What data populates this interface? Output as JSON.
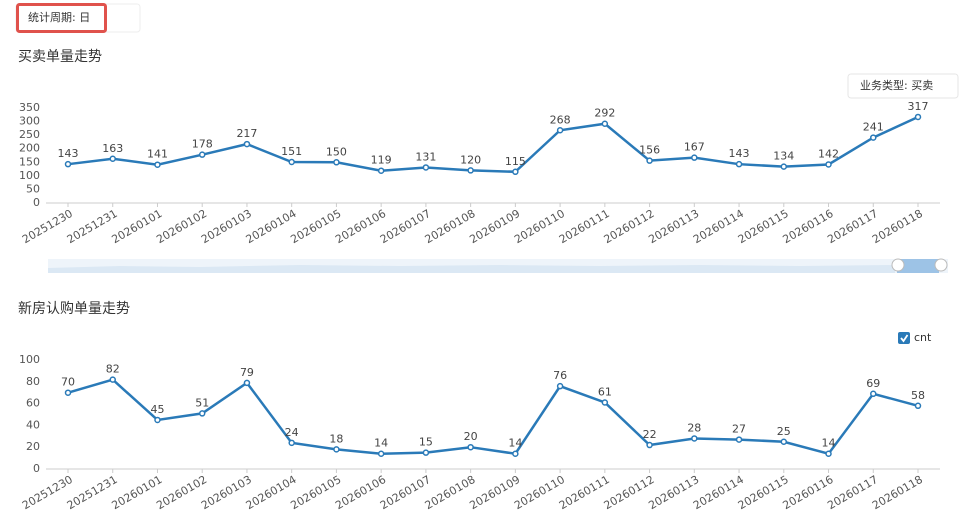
{
  "filter": {
    "label": "统计周期: 日"
  },
  "chart_data": [
    {
      "type": "line",
      "title": "买卖单量走势",
      "selector": "业务类型: 买卖",
      "categories": [
        "20251230",
        "20251231",
        "20260101",
        "20260102",
        "20260103",
        "20260104",
        "20260105",
        "20260106",
        "20260107",
        "20260108",
        "20260109",
        "20260110",
        "20260111",
        "20260112",
        "20260113",
        "20260114",
        "20260115",
        "20260116",
        "20260117",
        "20260118"
      ],
      "values": [
        143,
        163,
        141,
        178,
        217,
        151,
        150,
        119,
        131,
        120,
        115,
        268,
        292,
        156,
        167,
        143,
        134,
        142,
        241,
        317
      ],
      "color": "#2a7ab8",
      "ylim": [
        0,
        350
      ],
      "yticks": [
        0,
        50,
        100,
        150,
        200,
        250,
        300,
        350
      ],
      "grid": false
    },
    {
      "type": "line",
      "title": "新房认购单量走势",
      "categories": [
        "20251230",
        "20251231",
        "20260101",
        "20260102",
        "20260103",
        "20260104",
        "20260105",
        "20260106",
        "20260107",
        "20260108",
        "20260109",
        "20260110",
        "20260111",
        "20260112",
        "20260113",
        "20260114",
        "20260115",
        "20260116",
        "20260117",
        "20260118"
      ],
      "series": [
        {
          "name": "cnt",
          "color": "#2a7ab8",
          "values": [
            70,
            82,
            45,
            51,
            79,
            24,
            18,
            14,
            15,
            20,
            14,
            76,
            61,
            22,
            28,
            27,
            25,
            14,
            69,
            58
          ]
        }
      ],
      "ylim": [
        0,
        100
      ],
      "yticks": [
        0,
        20,
        40,
        60,
        80,
        100
      ],
      "grid": false
    }
  ]
}
